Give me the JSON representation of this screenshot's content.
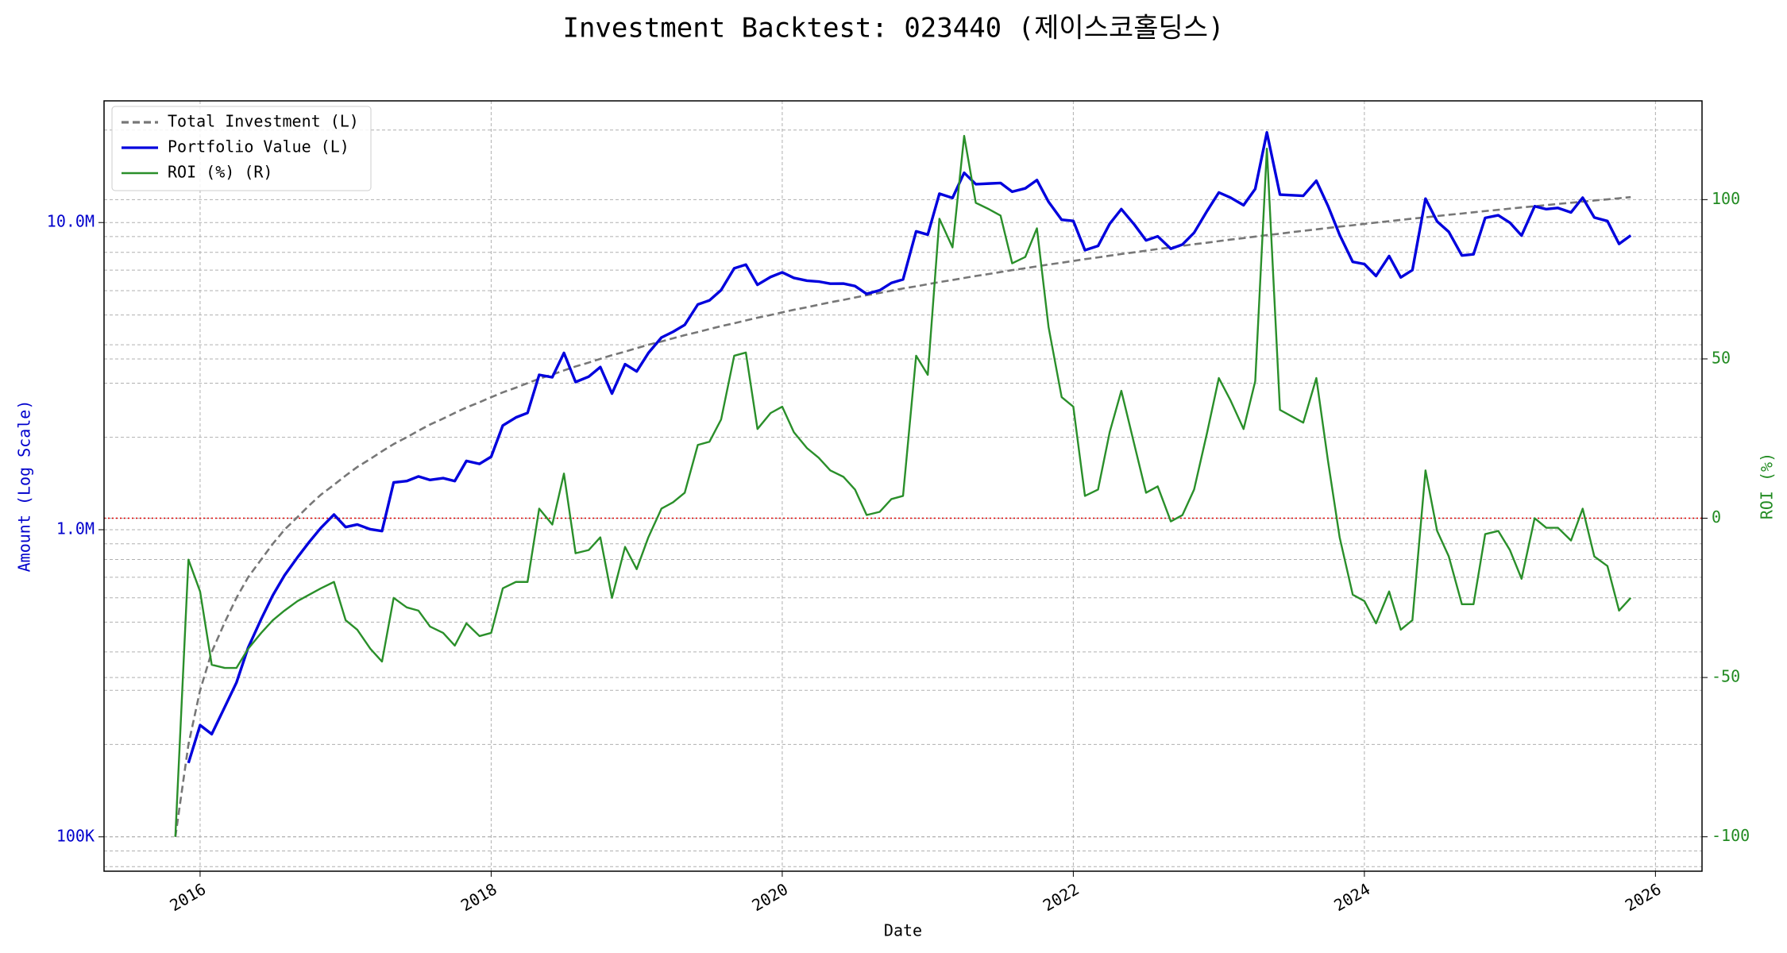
{
  "chart_data": {
    "type": "line",
    "title": "Investment Backtest: 023440 (제이스코홀딩스)",
    "xlabel": "Date",
    "ylabel": "Amount (Log Scale)",
    "y2label": "ROI (%)",
    "x": [
      2015.83,
      2015.92,
      2016,
      2016.08,
      2016.17,
      2016.25,
      2016.33,
      2016.42,
      2016.5,
      2016.58,
      2016.67,
      2016.75,
      2016.83,
      2016.92,
      2017,
      2017.08,
      2017.17,
      2017.25,
      2017.33,
      2017.42,
      2017.5,
      2017.58,
      2017.67,
      2017.75,
      2017.83,
      2017.92,
      2018,
      2018.08,
      2018.17,
      2018.25,
      2018.33,
      2018.42,
      2018.5,
      2018.58,
      2018.67,
      2018.75,
      2018.83,
      2018.92,
      2019,
      2019.08,
      2019.17,
      2019.25,
      2019.33,
      2019.42,
      2019.5,
      2019.58,
      2019.67,
      2019.75,
      2019.83,
      2019.92,
      2020,
      2020.08,
      2020.17,
      2020.25,
      2020.33,
      2020.42,
      2020.5,
      2020.58,
      2020.67,
      2020.75,
      2020.83,
      2020.92,
      2021,
      2021.08,
      2021.17,
      2021.25,
      2021.33,
      2021.42,
      2021.5,
      2021.58,
      2021.67,
      2021.75,
      2021.83,
      2021.92,
      2022,
      2022.08,
      2022.17,
      2022.25,
      2022.33,
      2022.42,
      2022.5,
      2022.58,
      2022.67,
      2022.75,
      2022.83,
      2022.92,
      2023,
      2023.08,
      2023.17,
      2023.25,
      2023.33,
      2023.42,
      2023.5,
      2023.58,
      2023.67,
      2023.75,
      2023.83,
      2023.92,
      2024,
      2024.08,
      2024.17,
      2024.25,
      2024.33,
      2024.42,
      2024.5,
      2024.58,
      2024.67,
      2024.75,
      2024.83,
      2024.92,
      2025,
      2025.08,
      2025.17,
      2025.25,
      2025.33,
      2025.42,
      2025.5,
      2025.58,
      2025.67,
      2025.75,
      2025.83
    ],
    "series": [
      {
        "name": "Total Investment (L)",
        "color": "#777777",
        "style": "dashed",
        "axis": "y",
        "values": [
          100000,
          200000,
          300000,
          400000,
          500000,
          600000,
          700000,
          800000,
          900000,
          1000000,
          1100000,
          1200000,
          1300000,
          1400000,
          1500000,
          1600000,
          1700000,
          1800000,
          1900000,
          2000000,
          2100000,
          2200000,
          2300000,
          2400000,
          2500000,
          2600000,
          2700000,
          2800000,
          2900000,
          3000000,
          3100000,
          3200000,
          3300000,
          3400000,
          3500000,
          3600000,
          3700000,
          3800000,
          3900000,
          4000000,
          4100000,
          4200000,
          4300000,
          4400000,
          4500000,
          4600000,
          4700000,
          4800000,
          4900000,
          5000000,
          5100000,
          5200000,
          5300000,
          5400000,
          5500000,
          5600000,
          5700000,
          5800000,
          5900000,
          6000000,
          6100000,
          6200000,
          6300000,
          6400000,
          6500000,
          6600000,
          6700000,
          6800000,
          6900000,
          7000000,
          7100000,
          7200000,
          7300000,
          7400000,
          7500000,
          7600000,
          7700000,
          7800000,
          7900000,
          8000000,
          8100000,
          8200000,
          8300000,
          8400000,
          8500000,
          8600000,
          8700000,
          8800000,
          8900000,
          9000000,
          9100000,
          9200000,
          9300000,
          9400000,
          9500000,
          9600000,
          9700000,
          9800000,
          9900000,
          10000000,
          10100000,
          10200000,
          10300000,
          10400000,
          10500000,
          10600000,
          10700000,
          10800000,
          10900000,
          11000000,
          11100000,
          11200000,
          11300000,
          11400000,
          11500000,
          11600000,
          11700000,
          11800000,
          11900000,
          12000000,
          12100000
        ]
      },
      {
        "name": "Portfolio Value (L)",
        "color": "#0000dd",
        "style": "solid",
        "axis": "y",
        "values": [
          null,
          174000,
          231000,
          216000,
          265000,
          318000,
          413000,
          512000,
          612000,
          710000,
          814000,
          912000,
          1014000,
          1120000,
          1020000,
          1040000,
          1003000,
          990000,
          1425000,
          1440000,
          1491000,
          1452000,
          1472000,
          1440000,
          1675000,
          1638000,
          1728000,
          2184000,
          2320000,
          2400000,
          3193000,
          3136000,
          3762000,
          3026000,
          3150000,
          3384000,
          2775000,
          3458000,
          3276000,
          3760000,
          4223000,
          4410000,
          4644000,
          5412000,
          5580000,
          6026000,
          7097000,
          7296000,
          6272000,
          6650000,
          6885000,
          6604000,
          6466000,
          6426000,
          6325000,
          6328000,
          6213000,
          5858000,
          6018000,
          6360000,
          6527000,
          9362000,
          9135000,
          12416000,
          12025000,
          14520000,
          13333000,
          13396000,
          13455000,
          12600000,
          12922000,
          13752000,
          11680000,
          10212000,
          10125000,
          8132000,
          8393000,
          9906000,
          11060000,
          9840000,
          8748000,
          9020000,
          8217000,
          8484000,
          9265000,
          10922000,
          12528000,
          12056000,
          11392000,
          12870000,
          19656000,
          12328000,
          12276000,
          12220000,
          13680000,
          11328000,
          9118000,
          7448000,
          7326000,
          6700000,
          7777000,
          6630000,
          7004000,
          11960000,
          10080000,
          9328000,
          7811000,
          7884000,
          10355000,
          10560000,
          9990000,
          9072000,
          11300000,
          11058000,
          11155000,
          10788000,
          12051000,
          10384000,
          10115000,
          8520000,
          9075000
        ]
      },
      {
        "name": "ROI (%) (R)",
        "color": "#2a8f2a",
        "style": "solid",
        "axis": "y2",
        "values": [
          -100,
          -13,
          -23,
          -46,
          -47,
          -47,
          -41,
          -36,
          -32,
          -29,
          -26,
          -24,
          -22,
          -20,
          -32,
          -35,
          -41,
          -45,
          -25,
          -28,
          -29,
          -34,
          -36,
          -40,
          -33,
          -37,
          -36,
          -22,
          -20,
          -20,
          3,
          -2,
          14,
          -11,
          -10,
          -6,
          -25,
          -9,
          -16,
          -6,
          3,
          5,
          8,
          23,
          24,
          31,
          51,
          52,
          28,
          33,
          35,
          27,
          22,
          19,
          15,
          13,
          9,
          1,
          2,
          6,
          7,
          51,
          45,
          94,
          85,
          120,
          99,
          97,
          95,
          80,
          82,
          91,
          60,
          38,
          35,
          7,
          9,
          27,
          40,
          23,
          8,
          10,
          -1,
          1,
          9,
          27,
          44,
          37,
          28,
          43,
          116,
          34,
          32,
          30,
          44,
          18,
          -6,
          -24,
          -26,
          -33,
          -23,
          -35,
          -32,
          15,
          -4,
          -12,
          -27,
          -27,
          -5,
          -4,
          -10,
          -19,
          0,
          -3,
          -3,
          -7,
          3,
          -12,
          -15,
          -29,
          -25
        ]
      }
    ],
    "xlim": [
      2015.34,
      2026.32
    ],
    "xticks": [
      2016,
      2018,
      2020,
      2022,
      2024,
      2026
    ],
    "ylim": [
      77300,
      24900000
    ],
    "ylog": true,
    "yticks": [
      {
        "value": 100000,
        "label": "100K"
      },
      {
        "value": 1000000,
        "label": "1.0M"
      },
      {
        "value": 10000000,
        "label": "10.0M"
      }
    ],
    "yminorticks": [
      80000,
      90000,
      200000,
      300000,
      400000,
      500000,
      600000,
      700000,
      800000,
      900000,
      2000000,
      3000000,
      4000000,
      5000000,
      6000000,
      7000000,
      8000000,
      9000000,
      20000000
    ],
    "y2lim": [
      -110.8,
      131
    ],
    "y2ticks": [
      -100,
      -50,
      0,
      50,
      100
    ],
    "hline": {
      "value": 0,
      "axis": "y2",
      "color": "#dd0000"
    },
    "ycolor": "#0000cc",
    "y2color": "#228b22",
    "grid": true,
    "legend": "upper left"
  }
}
